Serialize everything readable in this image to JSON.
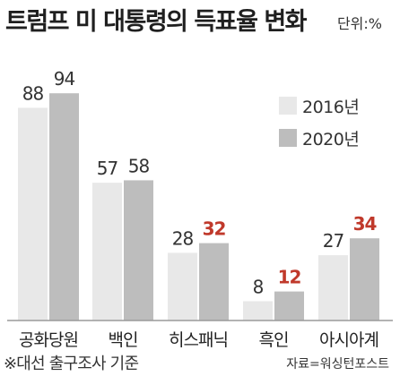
{
  "header": {
    "title": "트럼프 미 대통령의 득표율 변화",
    "unit": "단위:%"
  },
  "footer": {
    "note": "※대선 출구조사 기준",
    "source": "자료=워싱턴포스트"
  },
  "colors": {
    "s2016": "#e8e8e8",
    "s2020": "#bdbdbd",
    "label_default": "#333333",
    "label_highlight": "#c0392b",
    "baseline": "#9a9a9a"
  },
  "chart_data": {
    "type": "bar",
    "title": "트럼프 미 대통령의 득표율 변화",
    "unit": "단위:%",
    "categories": [
      "공화당원",
      "백인",
      "히스패닉",
      "흑인",
      "아시아계"
    ],
    "series": [
      {
        "name": "2016년",
        "values": [
          88,
          57,
          28,
          8,
          27
        ]
      },
      {
        "name": "2020년",
        "values": [
          94,
          58,
          32,
          12,
          34
        ],
        "highlight": [
          false,
          false,
          true,
          true,
          true
        ]
      }
    ],
    "ylim": [
      0,
      100
    ],
    "grid": false,
    "legend": "right"
  }
}
